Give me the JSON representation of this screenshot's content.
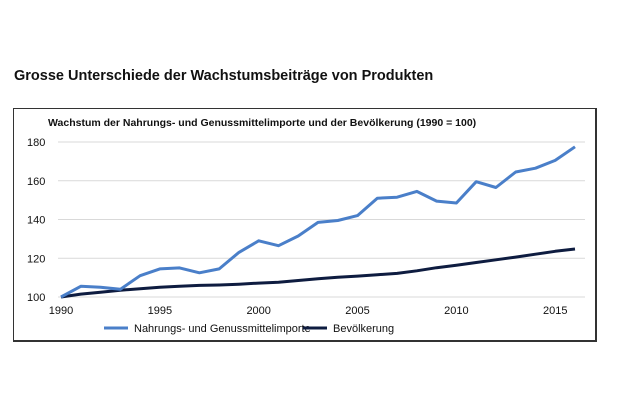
{
  "heading": "Grosse Unterschiede der Wachstumsbeiträge von Produkten",
  "chart_data": {
    "type": "line",
    "title": "Wachstum der Nahrungs- und Genussmittelimporte und der Bevölkerung (1990 = 100)",
    "xlabel": "",
    "ylabel": "",
    "x": [
      1990,
      1991,
      1992,
      1993,
      1994,
      1995,
      1996,
      1997,
      1998,
      1999,
      2000,
      2001,
      2002,
      2003,
      2004,
      2005,
      2006,
      2007,
      2008,
      2009,
      2010,
      2011,
      2012,
      2013,
      2014,
      2015,
      2016
    ],
    "xlim": [
      1990,
      2016
    ],
    "ylim": [
      100,
      180
    ],
    "x_ticks": [
      "1990",
      "1995",
      "2000",
      "2005",
      "2010",
      "2015"
    ],
    "y_ticks": [
      "100",
      "120",
      "140",
      "160",
      "180"
    ],
    "grid": true,
    "legend_position": "bottom",
    "series": [
      {
        "name": "Nahrungs- und Genussmittelimporte",
        "color": "#4a7fc9",
        "values": [
          100,
          105.5,
          105,
          104,
          111,
          114.5,
          115,
          112.5,
          114.5,
          123,
          129,
          126.5,
          131.5,
          138.5,
          139.5,
          142,
          151,
          151.5,
          154.5,
          149.5,
          148.5,
          159.5,
          156.5,
          164.5,
          166.5,
          170.5,
          177.5
        ]
      },
      {
        "name": "Bevölkerung",
        "color": "#0e1c40",
        "values": [
          100,
          101.5,
          102.5,
          103.5,
          104.3,
          105,
          105.6,
          106,
          106.2,
          106.6,
          107.2,
          107.6,
          108.5,
          109.4,
          110.2,
          110.8,
          111.5,
          112.2,
          113.5,
          115.1,
          116.4,
          117.8,
          119.2,
          120.6,
          122.1,
          123.6,
          124.8
        ]
      }
    ]
  }
}
